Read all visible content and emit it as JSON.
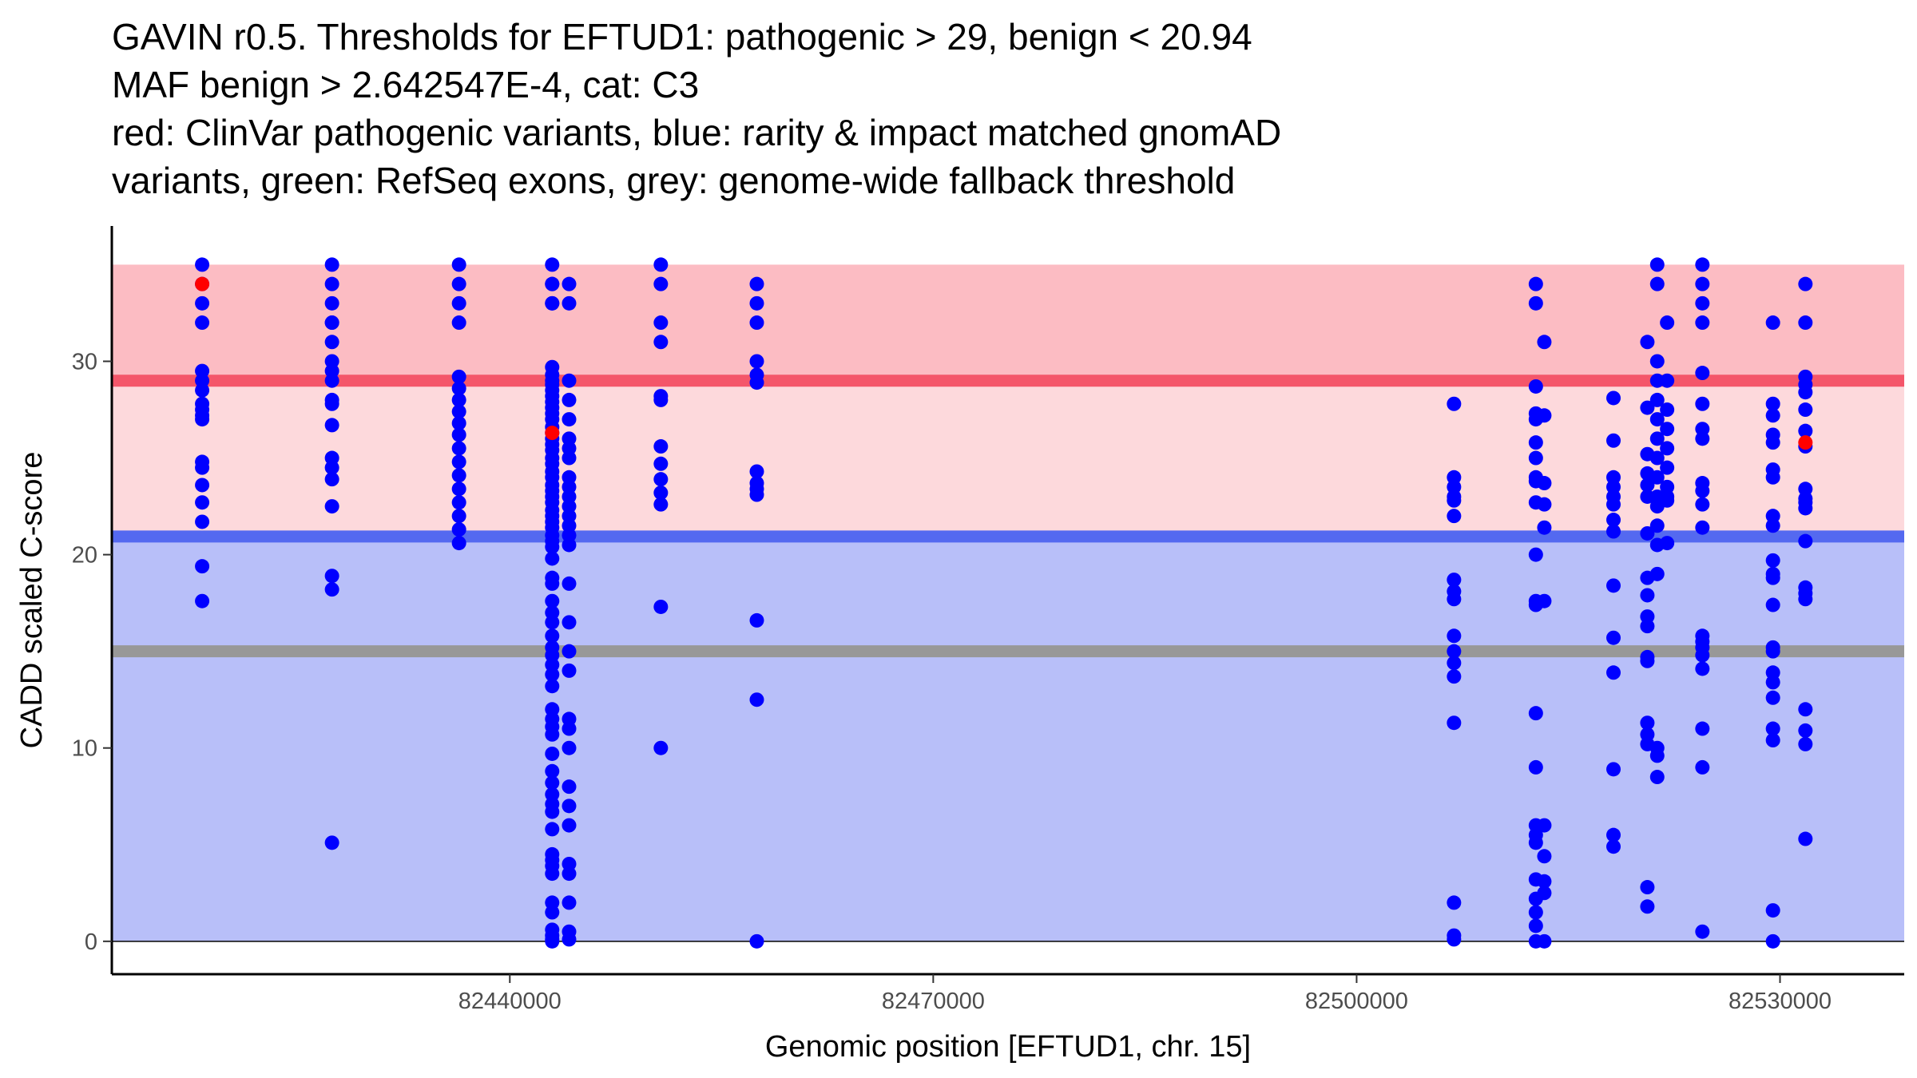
{
  "chart_data": {
    "type": "scatter",
    "title_lines": [
      "GAVIN r0.5. Thresholds for EFTUD1: pathogenic > 29, benign < 20.94",
      "MAF benign > 2.642547E-4, cat: C3",
      "red: ClinVar pathogenic variants, blue: rarity & impact matched gnomAD",
      "variants, green: RefSeq exons, grey: genome-wide fallback threshold"
    ],
    "xlabel": "Genomic position [EFTUD1, chr. 15]",
    "ylabel": "CADD scaled C-score",
    "xlim": [
      82411800,
      82538800
    ],
    "ylim": [
      -1.7,
      37.0
    ],
    "x_ticks": [
      82440000,
      82470000,
      82500000,
      82530000
    ],
    "x_tick_labels": [
      "82440000",
      "82470000",
      "82500000",
      "82530000"
    ],
    "y_ticks": [
      0,
      10,
      20,
      30
    ],
    "y_tick_labels": [
      "0",
      "10",
      "20",
      "30"
    ],
    "thresholds": {
      "pathogenic": 29,
      "benign": 20.94,
      "genome_wide_fallback": 15,
      "top": 35
    },
    "colors": {
      "pathogenic_band": "#fcbcc3",
      "mid_band": "#fdd9dc",
      "benign_band": "#b8bff9",
      "pathogenic_line": "#f4566a",
      "benign_line": "#5469f0",
      "fallback_line": "#989898",
      "gnomad_points": "#0000ff",
      "clinvar_points": "#ff0000"
    },
    "series": [
      {
        "name": "gnomAD matched variants",
        "color": "#0000ff",
        "columns": [
          {
            "x": 82418200,
            "y": [
              35,
              34,
              33,
              32,
              29.5,
              29,
              28.5,
              27.8,
              27.5,
              27.2,
              27,
              24.8,
              24.5,
              23.6,
              22.7,
              21.7,
              19.4,
              17.6
            ]
          },
          {
            "x": 82427400,
            "y": [
              35,
              34,
              33,
              32,
              32,
              31,
              30,
              29.5,
              29,
              28,
              27.8,
              26.7,
              25,
              24.5,
              23.9,
              22.5,
              18.9,
              18.2,
              5.1
            ]
          },
          {
            "x": 82443000,
            "y": [
              35,
              34,
              34,
              33,
              33,
              29.7,
              29.3,
              29,
              28.8,
              28.5,
              28.2,
              27.9,
              27.6,
              27.3,
              27,
              26.6,
              26.3,
              26,
              25.7,
              25.4,
              25,
              24.7,
              24.3,
              24,
              23.6,
              23.3,
              23,
              22.7,
              22.3,
              22,
              21.7,
              21.4,
              21,
              20.7,
              20.4,
              19.8,
              18.8,
              18.5,
              17.6,
              17,
              16.5,
              15.8,
              15.2,
              14.8,
              14.3,
              13.8,
              13.2,
              12,
              11.5,
              11.1,
              10.7,
              9.7,
              8.8,
              8.2,
              7.6,
              7.1,
              6.7,
              5.8,
              4.5,
              4.2,
              3.9,
              3.5,
              2,
              1.5,
              0.6,
              0.3,
              0.1,
              0
            ]
          },
          {
            "x": 82444200,
            "y": [
              34,
              33,
              29,
              28,
              27,
              26,
              25.5,
              25,
              24,
              23.5,
              23,
              22.5,
              22,
              21.5,
              21,
              20.5,
              18.5,
              16.5,
              15,
              14,
              11.5,
              11,
              10,
              8,
              7,
              6,
              4,
              3.5,
              2,
              0.5,
              0.1
            ]
          },
          {
            "x": 82436400,
            "y": [
              35,
              34,
              33,
              32,
              29.2,
              28.6,
              28,
              27.4,
              26.8,
              26.2,
              25.5,
              24.8,
              24.1,
              23.4,
              22.7,
              22,
              21.3,
              20.6
            ]
          },
          {
            "x": 82450700,
            "y": [
              35,
              34,
              32,
              31,
              28.2,
              28,
              25.6,
              24.7,
              23.9,
              23.2,
              22.6,
              17.3,
              10
            ]
          },
          {
            "x": 82457500,
            "y": [
              34,
              33,
              32,
              30,
              29.3,
              28.9,
              24.3,
              23.7,
              23.4,
              23.1,
              16.6,
              12.5,
              0
            ]
          },
          {
            "x": 82506900,
            "y": [
              27.8,
              24,
              23.5,
              23,
              22.8,
              22,
              18.7,
              18.1,
              17.7,
              15.8,
              15,
              14.4,
              13.7,
              11.3,
              2,
              0.3,
              0.1
            ]
          },
          {
            "x": 82512700,
            "y": [
              34,
              33,
              28.7,
              27.3,
              27,
              25.8,
              25,
              24,
              23.8,
              22.7,
              20,
              17.6,
              17.4,
              11.8,
              9,
              6,
              5.5,
              5.1,
              3.2,
              2.2,
              1.5,
              0.8,
              0
            ]
          },
          {
            "x": 82513300,
            "y": [
              31,
              27.2,
              23.7,
              22.6,
              21.4,
              17.6,
              6,
              4.4,
              3.1,
              2.5,
              0
            ]
          },
          {
            "x": 82518200,
            "y": [
              28.1,
              25.9,
              24,
              23.5,
              23,
              22.6,
              21.8,
              21.2,
              18.4,
              15.7,
              13.9,
              8.9,
              5.5,
              4.9
            ]
          },
          {
            "x": 82520600,
            "y": [
              31,
              27.6,
              25.2,
              24.2,
              23.6,
              23,
              21.1,
              18.8,
              17.9,
              16.8,
              16.3,
              14.7,
              14.5,
              11.3,
              10.7,
              10.2,
              2.8,
              1.8
            ]
          },
          {
            "x": 82521300,
            "y": [
              35,
              34,
              30,
              29,
              28,
              27,
              26,
              25,
              24,
              23,
              22.5,
              21.5,
              20.5,
              19,
              10,
              9.6,
              8.5
            ]
          },
          {
            "x": 82522000,
            "y": [
              32,
              29,
              27.5,
              26.5,
              25.5,
              24.5,
              23.5,
              23,
              22.8,
              20.6
            ]
          },
          {
            "x": 82524500,
            "y": [
              35,
              34,
              33,
              32,
              29.4,
              27.8,
              26.5,
              26,
              23.7,
              23.3,
              22.6,
              21.4,
              15.8,
              15.5,
              15.2,
              14.8,
              14.1,
              11,
              9,
              0.5
            ]
          },
          {
            "x": 82529500,
            "y": [
              32,
              27.8,
              27.2,
              26.2,
              25.8,
              24.4,
              24,
              22,
              21.5,
              19.7,
              19,
              18.8,
              17.4,
              15.2,
              15,
              13.9,
              13.4,
              12.6,
              11,
              10.4,
              1.6,
              0
            ]
          },
          {
            "x": 82531800,
            "y": [
              34,
              32,
              29.2,
              28.8,
              28.4,
              27.5,
              26.4,
              25.6,
              23.4,
              22.9,
              22.7,
              22.4,
              20.7,
              18.3,
              18,
              17.7,
              12,
              10.9,
              10.2,
              5.3
            ]
          }
        ]
      },
      {
        "name": "ClinVar pathogenic variants",
        "color": "#ff0000",
        "points": [
          {
            "x": 82418200,
            "y": 34
          },
          {
            "x": 82443000,
            "y": 26.3
          },
          {
            "x": 82531800,
            "y": 25.8
          }
        ]
      }
    ]
  }
}
